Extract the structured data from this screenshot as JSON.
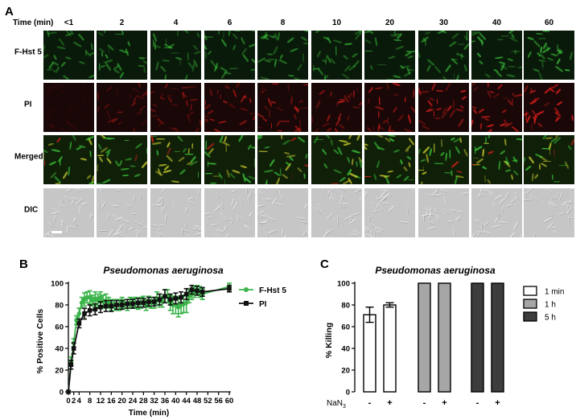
{
  "panel_a": {
    "label": "A",
    "time_header": "Time (min)",
    "times": [
      "<1",
      "2",
      "4",
      "6",
      "8",
      "10",
      "20",
      "30",
      "40",
      "60"
    ],
    "rows": [
      {
        "label": "F-Hst 5",
        "kind": "green",
        "intensity": [
          0.55,
          0.6,
          0.6,
          0.6,
          0.6,
          0.6,
          0.6,
          0.65,
          0.75,
          0.9
        ]
      },
      {
        "label": "PI",
        "kind": "red",
        "intensity": [
          0.08,
          0.35,
          0.45,
          0.55,
          0.6,
          0.55,
          0.65,
          0.7,
          0.8,
          0.95
        ]
      },
      {
        "label": "Merged",
        "kind": "merged",
        "intensity": [
          0.55,
          0.6,
          0.6,
          0.62,
          0.62,
          0.62,
          0.65,
          0.68,
          0.78,
          0.92
        ]
      },
      {
        "label": "DIC",
        "kind": "dic",
        "intensity": [
          0.5,
          0.5,
          0.5,
          0.5,
          0.5,
          0.5,
          0.5,
          0.5,
          0.5,
          0.5
        ]
      }
    ],
    "colors": {
      "green": "#3fd23f",
      "red": "#e0201c",
      "yellow": "#d8dc30",
      "dic_bg": "#c6c6c6"
    }
  },
  "chart_data": [
    {
      "panel": "B",
      "type": "line",
      "title": "Pseudomonas aeruginosa",
      "xlabel": "Time (min)",
      "ylabel": "% Positive Cells",
      "xlim": [
        0,
        60
      ],
      "ylim": [
        0,
        100
      ],
      "xticks": [
        "0",
        "2",
        "4",
        "8",
        "12",
        "16",
        "20",
        "24",
        "28",
        "32",
        "36",
        "40",
        "44",
        "48",
        "52",
        "56",
        "60"
      ],
      "yticks": [
        "0",
        "20",
        "40",
        "60",
        "80",
        "100"
      ],
      "legend_position": "right",
      "grid": false,
      "series": [
        {
          "name": "F-Hst 5",
          "color": "#3cb44b",
          "marker": "circle",
          "x": [
            0,
            1,
            2,
            3,
            4,
            5,
            6,
            7,
            8,
            9,
            10,
            11,
            12,
            13,
            14,
            15,
            16,
            17,
            18,
            19,
            20,
            21,
            22,
            23,
            24,
            25,
            26,
            27,
            28,
            29,
            30,
            31,
            32,
            33,
            34,
            35,
            36,
            37,
            38,
            39,
            40,
            41,
            42,
            43,
            44,
            45,
            46,
            47,
            48,
            49,
            50,
            60
          ],
          "y": [
            0,
            28,
            45,
            66,
            72,
            82,
            85,
            87,
            87,
            84,
            86,
            84,
            87,
            83,
            84,
            82,
            80,
            81,
            80,
            80,
            82,
            81,
            80,
            82,
            82,
            82,
            81,
            82,
            83,
            80,
            83,
            82,
            82,
            86,
            84,
            83,
            88,
            88,
            82,
            80,
            80,
            78,
            80,
            81,
            82,
            88,
            90,
            92,
            94,
            92,
            90,
            97
          ],
          "err": [
            0,
            4,
            4,
            4,
            5,
            5,
            6,
            5,
            6,
            5,
            6,
            6,
            5,
            6,
            6,
            5,
            5,
            4,
            5,
            5,
            5,
            4,
            5,
            5,
            4,
            5,
            5,
            5,
            5,
            5,
            5,
            5,
            5,
            6,
            6,
            5,
            6,
            6,
            7,
            8,
            8,
            9,
            8,
            8,
            9,
            6,
            5,
            5,
            4,
            5,
            5,
            3
          ]
        },
        {
          "name": "PI",
          "color": "#111111",
          "marker": "square",
          "x": [
            0,
            1,
            2,
            4,
            6,
            8,
            10,
            12,
            14,
            16,
            18,
            20,
            22,
            24,
            26,
            28,
            30,
            32,
            34,
            36,
            38,
            40,
            42,
            44,
            46,
            48,
            50,
            60
          ],
          "y": [
            0,
            25,
            40,
            63,
            72,
            75,
            76,
            78,
            79,
            79,
            80,
            80,
            81,
            81,
            82,
            82,
            83,
            83,
            85,
            88,
            85,
            86,
            87,
            90,
            94,
            93,
            92,
            95
          ],
          "err": [
            0,
            4,
            5,
            4,
            5,
            5,
            5,
            5,
            5,
            5,
            4,
            4,
            4,
            4,
            4,
            4,
            4,
            4,
            5,
            6,
            5,
            5,
            5,
            5,
            4,
            4,
            4,
            3
          ]
        }
      ]
    },
    {
      "panel": "C",
      "type": "bar",
      "title": "Pseudomonas aeruginosa",
      "ylabel": "% Killing",
      "ylim": [
        0,
        100
      ],
      "yticks": [
        "0",
        "20",
        "40",
        "60",
        "80",
        "100"
      ],
      "xlabel_row": "NaN",
      "xlabel_sub": "3",
      "conditions": [
        "-",
        "+",
        "-",
        "+",
        "-",
        "+"
      ],
      "legend_position": "right",
      "series": [
        {
          "name": "1 min",
          "color": "#ffffff",
          "values": [
            71,
            80
          ],
          "err": [
            7,
            2
          ]
        },
        {
          "name": "1 h",
          "color": "#a6a6a6",
          "values": [
            100,
            100
          ],
          "err": [
            0,
            0
          ]
        },
        {
          "name": "5 h",
          "color": "#3d3d3d",
          "values": [
            100,
            100
          ],
          "err": [
            0,
            0
          ]
        }
      ]
    }
  ],
  "panel_b_label": "B",
  "panel_c_label": "C"
}
